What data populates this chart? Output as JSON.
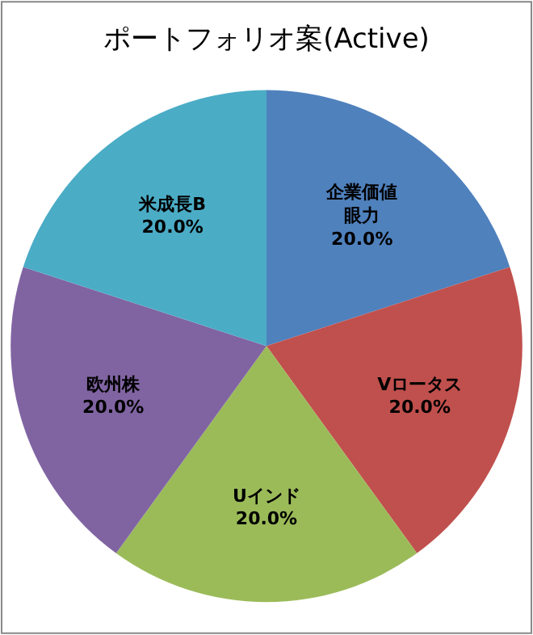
{
  "chart_data": {
    "type": "pie",
    "title": "ポートフォリオ案(Active)",
    "categories": [
      "企業価値眼力",
      "Vロータス",
      "Uインド",
      "欧州株",
      "米成長B"
    ],
    "values": [
      20,
      20,
      20,
      20,
      20
    ],
    "value_labels": [
      "20.0%",
      "20.0%",
      "20.0%",
      "20.0%",
      "20.0%"
    ],
    "colors": [
      "#4f81bd",
      "#c0504d",
      "#9bbb59",
      "#8064a2",
      "#4bacc6"
    ],
    "legend": false
  }
}
